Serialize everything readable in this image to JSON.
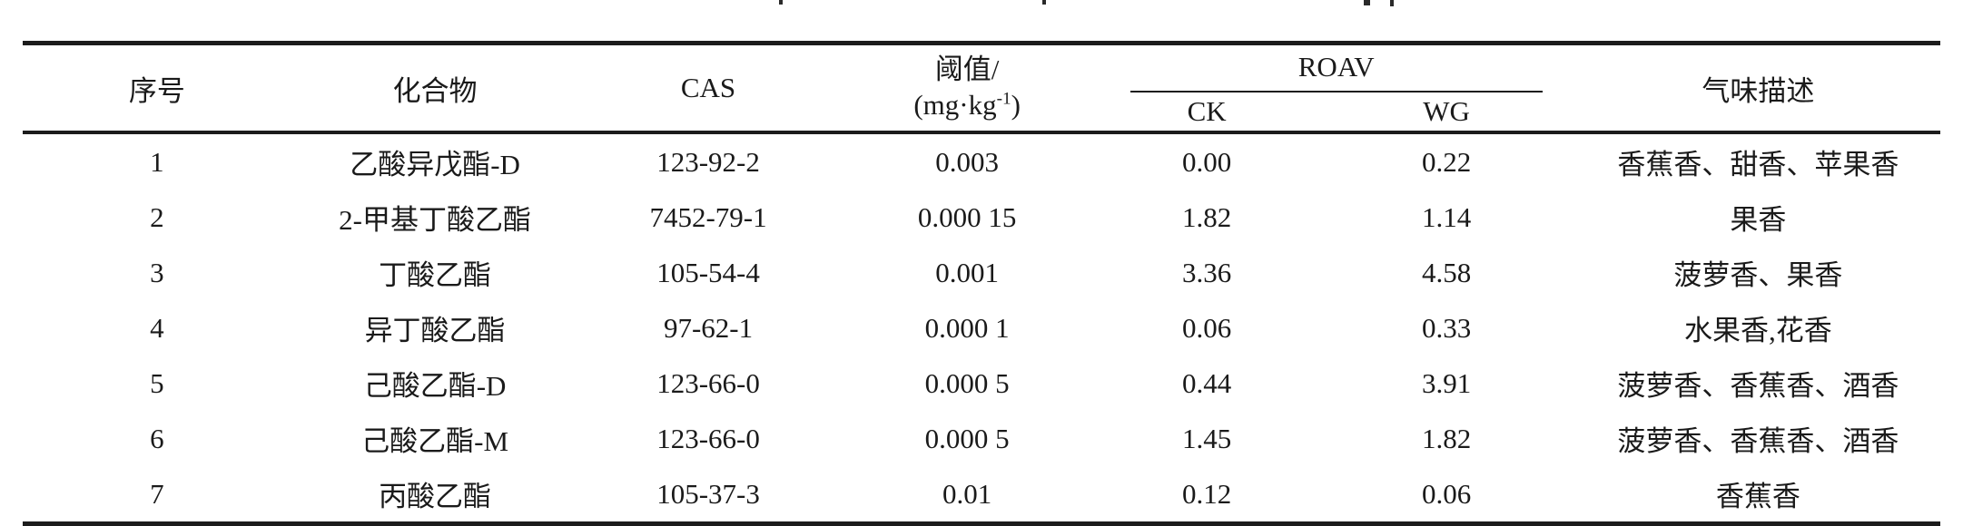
{
  "table": {
    "headers": {
      "no": "序号",
      "compound": "化合物",
      "cas": "CAS",
      "threshold_line1": "阈值/",
      "threshold_unit_prefix": "(mg·kg",
      "threshold_unit_sup": "-1",
      "threshold_unit_suffix": ")",
      "roav_group": "ROAV",
      "roav_ck": "CK",
      "roav_wg": "WG",
      "odor": "气味描述"
    },
    "rows": [
      {
        "no": "1",
        "compound": "乙酸异戊酯-D",
        "cas": "123-92-2",
        "threshold": "0.003",
        "ck": "0.00",
        "wg": "0.22",
        "odor": "香蕉香、甜香、苹果香"
      },
      {
        "no": "2",
        "compound": "2-甲基丁酸乙酯",
        "cas": "7452-79-1",
        "threshold": "0.000 15",
        "ck": "1.82",
        "wg": "1.14",
        "odor": "果香"
      },
      {
        "no": "3",
        "compound": "丁酸乙酯",
        "cas": "105-54-4",
        "threshold": "0.001",
        "ck": "3.36",
        "wg": "4.58",
        "odor": "菠萝香、果香"
      },
      {
        "no": "4",
        "compound": "异丁酸乙酯",
        "cas": "97-62-1",
        "threshold": "0.000 1",
        "ck": "0.06",
        "wg": "0.33",
        "odor": "水果香,花香"
      },
      {
        "no": "5",
        "compound": "己酸乙酯-D",
        "cas": "123-66-0",
        "threshold": "0.000 5",
        "ck": "0.44",
        "wg": "3.91",
        "odor": "菠萝香、香蕉香、酒香"
      },
      {
        "no": "6",
        "compound": "己酸乙酯-M",
        "cas": "123-66-0",
        "threshold": "0.000 5",
        "ck": "1.45",
        "wg": "1.82",
        "odor": "菠萝香、香蕉香、酒香"
      },
      {
        "no": "7",
        "compound": "丙酸乙酯",
        "cas": "105-37-3",
        "threshold": "0.01",
        "ck": "0.12",
        "wg": "0.06",
        "odor": "香蕉香"
      }
    ]
  },
  "colors": {
    "text": "#1a1a1a",
    "rule": "#1c1c1c",
    "background": "#ffffff"
  }
}
